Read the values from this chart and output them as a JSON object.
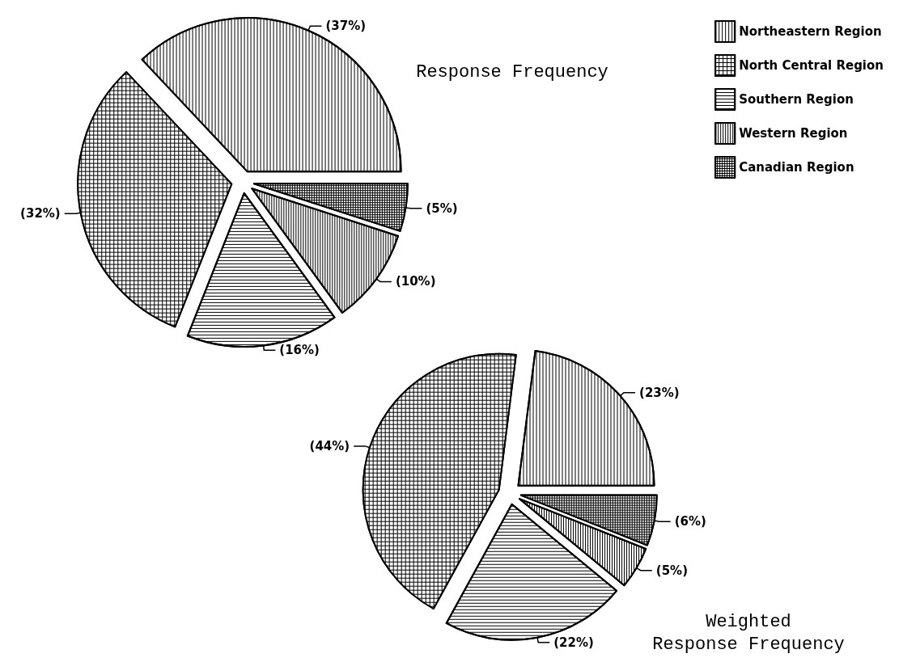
{
  "chart_data": [
    {
      "type": "pie",
      "title": "Response Frequency",
      "categories": [
        "Northeastern Region",
        "North Central Region",
        "Southern Region",
        "Western Region",
        "Canadian Region"
      ],
      "values": [
        37,
        32,
        16,
        10,
        5
      ],
      "value_labels": [
        "(37%)",
        "(32%)",
        "(16%)",
        "(10%)",
        "(5%)"
      ],
      "legend": "top right"
    },
    {
      "type": "pie",
      "title": "Weighted\nResponse Frequency",
      "categories": [
        null,
        null,
        null,
        null,
        null
      ],
      "values": [
        23,
        44,
        22,
        5,
        6
      ],
      "value_labels": [
        "(23%)",
        "(44%)",
        "(22%)",
        "(5%)",
        "(6%)"
      ],
      "legend": false
    }
  ]
}
